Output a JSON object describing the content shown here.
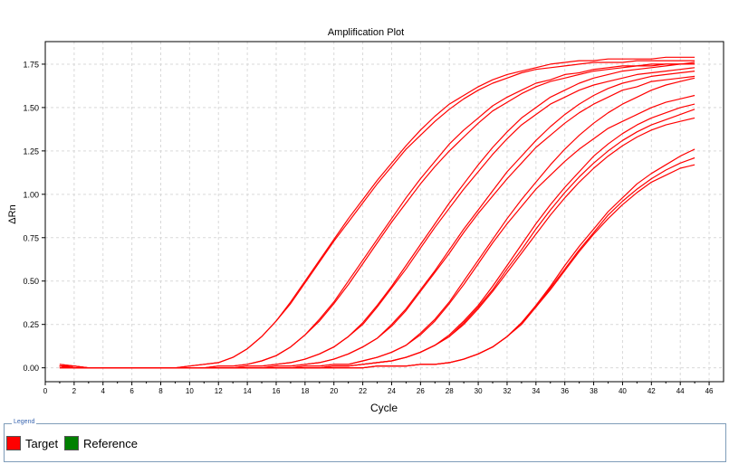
{
  "chart_data": {
    "type": "line",
    "title": "Amplification Plot",
    "xlabel": "Cycle",
    "ylabel": "ΔRn",
    "xlim": [
      0,
      47
    ],
    "ylim": [
      -0.08,
      1.88
    ],
    "x_ticks": [
      "0",
      "2",
      "4",
      "6",
      "8",
      "10",
      "12",
      "14",
      "16",
      "18",
      "20",
      "22",
      "24",
      "26",
      "28",
      "30",
      "32",
      "34",
      "36",
      "38",
      "40",
      "42",
      "44",
      "46"
    ],
    "y_ticks": [
      "0.00",
      "0.25",
      "0.50",
      "0.75",
      "1.00",
      "1.25",
      "1.50",
      "1.75"
    ],
    "grid": true,
    "legend_position": "bottom",
    "series_color": "#ff0000",
    "x": [
      1,
      2,
      3,
      4,
      5,
      6,
      7,
      8,
      9,
      10,
      11,
      12,
      13,
      14,
      15,
      16,
      17,
      18,
      19,
      20,
      21,
      22,
      23,
      24,
      25,
      26,
      27,
      28,
      29,
      30,
      31,
      32,
      33,
      34,
      35,
      36,
      37,
      38,
      39,
      40,
      41,
      42,
      43,
      44,
      45
    ],
    "series": [
      {
        "values": [
          0.02,
          0.01,
          0.0,
          0.0,
          0.0,
          0.0,
          0.0,
          0.0,
          0.0,
          0.01,
          0.02,
          0.03,
          0.06,
          0.11,
          0.18,
          0.27,
          0.38,
          0.5,
          0.62,
          0.74,
          0.86,
          0.97,
          1.08,
          1.18,
          1.28,
          1.37,
          1.45,
          1.52,
          1.57,
          1.62,
          1.66,
          1.69,
          1.71,
          1.73,
          1.75,
          1.76,
          1.77,
          1.77,
          1.78,
          1.78,
          1.78,
          1.78,
          1.79,
          1.79,
          1.79
        ]
      },
      {
        "values": [
          0.02,
          0.01,
          0.0,
          0.0,
          0.0,
          0.0,
          0.0,
          0.0,
          0.0,
          0.01,
          0.02,
          0.03,
          0.06,
          0.11,
          0.18,
          0.27,
          0.37,
          0.49,
          0.61,
          0.73,
          0.84,
          0.95,
          1.06,
          1.16,
          1.26,
          1.34,
          1.42,
          1.49,
          1.55,
          1.6,
          1.64,
          1.67,
          1.7,
          1.72,
          1.73,
          1.74,
          1.75,
          1.76,
          1.76,
          1.76,
          1.77,
          1.77,
          1.77,
          1.77,
          1.77
        ]
      },
      {
        "values": [
          0.01,
          0.01,
          0.0,
          0.0,
          0.0,
          0.0,
          0.0,
          0.0,
          0.0,
          0.0,
          0.0,
          0.01,
          0.01,
          0.02,
          0.04,
          0.07,
          0.12,
          0.19,
          0.28,
          0.38,
          0.5,
          0.62,
          0.74,
          0.86,
          0.98,
          1.09,
          1.19,
          1.29,
          1.37,
          1.44,
          1.51,
          1.56,
          1.6,
          1.64,
          1.66,
          1.69,
          1.7,
          1.72,
          1.73,
          1.74,
          1.74,
          1.75,
          1.75,
          1.75,
          1.76
        ]
      },
      {
        "values": [
          0.01,
          0.01,
          0.0,
          0.0,
          0.0,
          0.0,
          0.0,
          0.0,
          0.0,
          0.0,
          0.0,
          0.01,
          0.01,
          0.02,
          0.04,
          0.07,
          0.12,
          0.19,
          0.27,
          0.37,
          0.48,
          0.6,
          0.72,
          0.84,
          0.95,
          1.06,
          1.16,
          1.25,
          1.33,
          1.41,
          1.48,
          1.53,
          1.58,
          1.62,
          1.65,
          1.67,
          1.69,
          1.71,
          1.72,
          1.73,
          1.74,
          1.74,
          1.75,
          1.75,
          1.75
        ]
      },
      {
        "values": [
          0.01,
          0.0,
          0.0,
          0.0,
          0.0,
          0.0,
          0.0,
          0.0,
          0.0,
          0.0,
          0.0,
          0.0,
          0.0,
          0.01,
          0.01,
          0.02,
          0.03,
          0.05,
          0.08,
          0.12,
          0.18,
          0.26,
          0.36,
          0.47,
          0.59,
          0.71,
          0.83,
          0.95,
          1.06,
          1.17,
          1.27,
          1.36,
          1.44,
          1.5,
          1.56,
          1.6,
          1.64,
          1.67,
          1.69,
          1.71,
          1.72,
          1.73,
          1.74,
          1.75,
          1.75
        ]
      },
      {
        "values": [
          0.01,
          0.0,
          0.0,
          0.0,
          0.0,
          0.0,
          0.0,
          0.0,
          0.0,
          0.0,
          0.0,
          0.0,
          0.0,
          0.01,
          0.01,
          0.02,
          0.03,
          0.05,
          0.08,
          0.12,
          0.18,
          0.25,
          0.35,
          0.46,
          0.57,
          0.69,
          0.81,
          0.92,
          1.03,
          1.13,
          1.23,
          1.32,
          1.4,
          1.46,
          1.52,
          1.56,
          1.6,
          1.63,
          1.65,
          1.67,
          1.69,
          1.7,
          1.71,
          1.72,
          1.73
        ]
      },
      {
        "values": [
          0.01,
          0.0,
          0.0,
          0.0,
          0.0,
          0.0,
          0.0,
          0.0,
          0.0,
          0.0,
          0.0,
          0.0,
          0.0,
          0.0,
          0.0,
          0.01,
          0.01,
          0.02,
          0.03,
          0.05,
          0.08,
          0.12,
          0.17,
          0.25,
          0.34,
          0.45,
          0.56,
          0.68,
          0.8,
          0.91,
          1.02,
          1.13,
          1.22,
          1.31,
          1.39,
          1.46,
          1.52,
          1.57,
          1.61,
          1.64,
          1.66,
          1.68,
          1.69,
          1.7,
          1.71
        ]
      },
      {
        "values": [
          0.01,
          0.0,
          0.0,
          0.0,
          0.0,
          0.0,
          0.0,
          0.0,
          0.0,
          0.0,
          0.0,
          0.0,
          0.0,
          0.0,
          0.0,
          0.01,
          0.01,
          0.02,
          0.03,
          0.05,
          0.08,
          0.12,
          0.17,
          0.24,
          0.33,
          0.44,
          0.55,
          0.66,
          0.78,
          0.89,
          0.99,
          1.09,
          1.18,
          1.27,
          1.34,
          1.41,
          1.47,
          1.52,
          1.56,
          1.6,
          1.62,
          1.65,
          1.66,
          1.67,
          1.68
        ]
      },
      {
        "values": [
          0.01,
          0.0,
          0.0,
          0.0,
          0.0,
          0.0,
          0.0,
          0.0,
          0.0,
          0.0,
          0.0,
          0.0,
          0.0,
          0.0,
          0.0,
          0.0,
          0.0,
          0.01,
          0.01,
          0.02,
          0.02,
          0.04,
          0.06,
          0.09,
          0.13,
          0.2,
          0.28,
          0.38,
          0.5,
          0.62,
          0.74,
          0.86,
          0.97,
          1.07,
          1.17,
          1.26,
          1.34,
          1.41,
          1.47,
          1.52,
          1.56,
          1.6,
          1.63,
          1.65,
          1.67
        ]
      },
      {
        "values": [
          0.01,
          0.0,
          0.0,
          0.0,
          0.0,
          0.0,
          0.0,
          0.0,
          0.0,
          0.0,
          0.0,
          0.0,
          0.0,
          0.0,
          0.0,
          0.0,
          0.0,
          0.01,
          0.01,
          0.02,
          0.02,
          0.04,
          0.06,
          0.09,
          0.13,
          0.19,
          0.27,
          0.37,
          0.48,
          0.6,
          0.72,
          0.83,
          0.93,
          1.03,
          1.11,
          1.19,
          1.26,
          1.32,
          1.38,
          1.42,
          1.46,
          1.5,
          1.53,
          1.55,
          1.57
        ]
      },
      {
        "values": [
          0.01,
          0.0,
          0.0,
          0.0,
          0.0,
          0.0,
          0.0,
          0.0,
          0.0,
          0.0,
          0.0,
          0.0,
          0.0,
          0.0,
          0.0,
          0.0,
          0.0,
          0.0,
          0.0,
          0.01,
          0.01,
          0.02,
          0.03,
          0.04,
          0.06,
          0.09,
          0.13,
          0.19,
          0.27,
          0.36,
          0.47,
          0.59,
          0.71,
          0.83,
          0.94,
          1.04,
          1.13,
          1.22,
          1.29,
          1.35,
          1.4,
          1.44,
          1.47,
          1.5,
          1.52
        ]
      },
      {
        "values": [
          0.01,
          0.0,
          0.0,
          0.0,
          0.0,
          0.0,
          0.0,
          0.0,
          0.0,
          0.0,
          0.0,
          0.0,
          0.0,
          0.0,
          0.0,
          0.0,
          0.0,
          0.0,
          0.0,
          0.01,
          0.01,
          0.02,
          0.03,
          0.04,
          0.06,
          0.09,
          0.13,
          0.18,
          0.26,
          0.35,
          0.45,
          0.57,
          0.68,
          0.8,
          0.91,
          1.01,
          1.1,
          1.18,
          1.25,
          1.31,
          1.36,
          1.4,
          1.43,
          1.46,
          1.49
        ]
      },
      {
        "values": [
          0.01,
          0.0,
          0.0,
          0.0,
          0.0,
          0.0,
          0.0,
          0.0,
          0.0,
          0.0,
          0.0,
          0.0,
          0.0,
          0.0,
          0.0,
          0.0,
          0.0,
          0.0,
          0.0,
          0.01,
          0.01,
          0.02,
          0.03,
          0.04,
          0.06,
          0.09,
          0.13,
          0.18,
          0.25,
          0.34,
          0.44,
          0.55,
          0.66,
          0.77,
          0.88,
          0.98,
          1.07,
          1.15,
          1.22,
          1.28,
          1.33,
          1.37,
          1.4,
          1.42,
          1.44
        ]
      },
      {
        "values": [
          0.0,
          0.0,
          0.0,
          0.0,
          0.0,
          0.0,
          0.0,
          0.0,
          0.0,
          0.0,
          0.0,
          0.0,
          0.0,
          0.0,
          0.0,
          0.0,
          0.0,
          0.0,
          0.0,
          0.0,
          0.0,
          0.0,
          0.01,
          0.01,
          0.01,
          0.02,
          0.02,
          0.03,
          0.05,
          0.08,
          0.12,
          0.18,
          0.26,
          0.36,
          0.47,
          0.59,
          0.7,
          0.8,
          0.9,
          0.98,
          1.06,
          1.12,
          1.17,
          1.22,
          1.26
        ]
      },
      {
        "values": [
          0.0,
          0.0,
          0.0,
          0.0,
          0.0,
          0.0,
          0.0,
          0.0,
          0.0,
          0.0,
          0.0,
          0.0,
          0.0,
          0.0,
          0.0,
          0.0,
          0.0,
          0.0,
          0.0,
          0.0,
          0.0,
          0.0,
          0.01,
          0.01,
          0.01,
          0.02,
          0.02,
          0.03,
          0.05,
          0.08,
          0.12,
          0.18,
          0.26,
          0.35,
          0.46,
          0.57,
          0.68,
          0.78,
          0.88,
          0.96,
          1.03,
          1.09,
          1.14,
          1.18,
          1.21
        ]
      },
      {
        "values": [
          0.0,
          0.0,
          0.0,
          0.0,
          0.0,
          0.0,
          0.0,
          0.0,
          0.0,
          0.0,
          0.0,
          0.0,
          0.0,
          0.0,
          0.0,
          0.0,
          0.0,
          0.0,
          0.0,
          0.0,
          0.0,
          0.0,
          0.01,
          0.01,
          0.01,
          0.02,
          0.02,
          0.03,
          0.05,
          0.08,
          0.12,
          0.18,
          0.25,
          0.35,
          0.45,
          0.56,
          0.67,
          0.77,
          0.86,
          0.94,
          1.01,
          1.07,
          1.11,
          1.15,
          1.17
        ]
      }
    ]
  },
  "legend": {
    "title": "Legend",
    "items": [
      {
        "label": "Target",
        "color": "#ff0000"
      },
      {
        "label": "Reference",
        "color": "#008000"
      }
    ]
  }
}
